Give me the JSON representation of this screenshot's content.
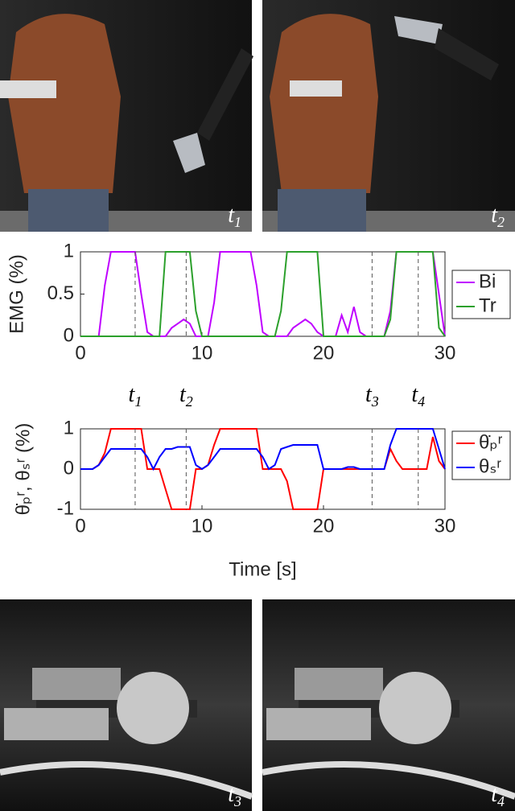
{
  "photos": [
    {
      "label": "t",
      "subscript": "1"
    },
    {
      "label": "t",
      "subscript": "2"
    },
    {
      "label": "t",
      "subscript": "3"
    },
    {
      "label": "t",
      "subscript": "4"
    }
  ],
  "time_markers": [
    {
      "label": "t",
      "subscript": "1",
      "x": 4.5
    },
    {
      "label": "t",
      "subscript": "2",
      "x": 8.7
    },
    {
      "label": "t",
      "subscript": "3",
      "x": 24
    },
    {
      "label": "t",
      "subscript": "4",
      "x": 27.8
    }
  ],
  "chart_data": [
    {
      "type": "line",
      "ylabel": "EMG (%)",
      "legend": "outside-right",
      "xlim": [
        0,
        30
      ],
      "xticks": [
        0,
        10,
        20,
        30
      ],
      "ylim": [
        0,
        1
      ],
      "yticks": [
        0,
        0.5,
        1
      ],
      "x": [
        0,
        0.5,
        1,
        1.5,
        2,
        2.5,
        3,
        3.5,
        4,
        4.5,
        5,
        5.5,
        6,
        6.5,
        7,
        7.5,
        8,
        8.5,
        9,
        9.5,
        10,
        10.5,
        11,
        11.5,
        12,
        12.5,
        13,
        13.5,
        14,
        14.5,
        15,
        15.5,
        16,
        16.5,
        17,
        17.5,
        18,
        18.5,
        19,
        19.5,
        20,
        20.5,
        21,
        21.5,
        22,
        22.5,
        23,
        23.5,
        24,
        24.5,
        25,
        25.5,
        26,
        26.5,
        27,
        27.5,
        28,
        28.5,
        29,
        29.5,
        30
      ],
      "series": [
        {
          "name": "Bi",
          "color": "#bf00ff",
          "values": [
            0,
            0,
            0,
            0,
            0.6,
            1,
            1,
            1,
            1,
            1,
            0.5,
            0.05,
            0,
            0,
            0,
            0.1,
            0.15,
            0.2,
            0.15,
            0,
            0,
            0,
            0.4,
            1,
            1,
            1,
            1,
            1,
            1,
            0.6,
            0.05,
            0,
            0,
            0,
            0,
            0.1,
            0.15,
            0.2,
            0.15,
            0.05,
            0,
            0,
            0,
            0.25,
            0.05,
            0.35,
            0.05,
            0,
            0,
            0,
            0,
            0.3,
            1,
            1,
            1,
            1,
            1,
            1,
            1,
            0.5,
            0
          ]
        },
        {
          "name": "Tr",
          "color": "#2ca02c",
          "values": [
            0,
            0,
            0,
            0,
            0,
            0,
            0,
            0,
            0,
            0,
            0,
            0,
            0,
            0,
            1,
            1,
            1,
            1,
            1,
            0.3,
            0,
            0,
            0,
            0,
            0,
            0,
            0,
            0,
            0,
            0,
            0,
            0,
            0,
            0.3,
            1,
            1,
            1,
            1,
            1,
            1,
            0,
            0,
            0,
            0,
            0,
            0,
            0,
            0,
            0,
            0,
            0,
            0.2,
            1,
            1,
            1,
            1,
            1,
            1,
            1,
            0.1,
            0
          ]
        }
      ]
    },
    {
      "type": "line",
      "ylabel": "θ̇ₚʳ, θₛʳ (%)",
      "xlabel": "Time [s]",
      "legend": "outside-right",
      "xlim": [
        0,
        30
      ],
      "xticks": [
        0,
        10,
        20,
        30
      ],
      "ylim": [
        -1,
        1
      ],
      "yticks": [
        -1,
        0,
        1
      ],
      "x": [
        0,
        0.5,
        1,
        1.5,
        2,
        2.5,
        3,
        3.5,
        4,
        4.5,
        5,
        5.5,
        6,
        6.5,
        7,
        7.5,
        8,
        8.5,
        9,
        9.5,
        10,
        10.5,
        11,
        11.5,
        12,
        12.5,
        13,
        13.5,
        14,
        14.5,
        15,
        15.5,
        16,
        16.5,
        17,
        17.5,
        18,
        18.5,
        19,
        19.5,
        20,
        20.5,
        21,
        21.5,
        22,
        22.5,
        23,
        23.5,
        24,
        24.5,
        25,
        25.5,
        26,
        26.5,
        27,
        27.5,
        28,
        28.5,
        29,
        29.5,
        30
      ],
      "series": [
        {
          "name": "θ̇ₚʳ",
          "color": "#ff0000",
          "values": [
            0,
            0,
            0,
            0.1,
            0.4,
            1,
            1,
            1,
            1,
            1,
            1,
            0,
            0,
            0,
            -0.5,
            -1,
            -1,
            -1,
            -1,
            0,
            0,
            0.1,
            0.6,
            1,
            1,
            1,
            1,
            1,
            1,
            1,
            0,
            0,
            0,
            0,
            -0.3,
            -1,
            -1,
            -1,
            -1,
            -1,
            0,
            0,
            0,
            0,
            0,
            0,
            0,
            0,
            0,
            0,
            0,
            0.5,
            0.2,
            0,
            0,
            0,
            0,
            0,
            0.8,
            0.2,
            0
          ]
        },
        {
          "name": "θₛʳ",
          "color": "#0000ff",
          "values": [
            0,
            0,
            0,
            0.1,
            0.3,
            0.5,
            0.5,
            0.5,
            0.5,
            0.5,
            0.5,
            0.3,
            0,
            0.3,
            0.5,
            0.5,
            0.55,
            0.55,
            0.55,
            0.1,
            0,
            0.1,
            0.3,
            0.5,
            0.5,
            0.5,
            0.5,
            0.5,
            0.5,
            0.5,
            0.3,
            0,
            0.1,
            0.5,
            0.55,
            0.6,
            0.6,
            0.6,
            0.6,
            0.6,
            0,
            0,
            0,
            0,
            0.05,
            0.05,
            0,
            0,
            0,
            0,
            0,
            0.6,
            1,
            1,
            1,
            1,
            1,
            1,
            1,
            0.5,
            0
          ]
        }
      ]
    }
  ]
}
